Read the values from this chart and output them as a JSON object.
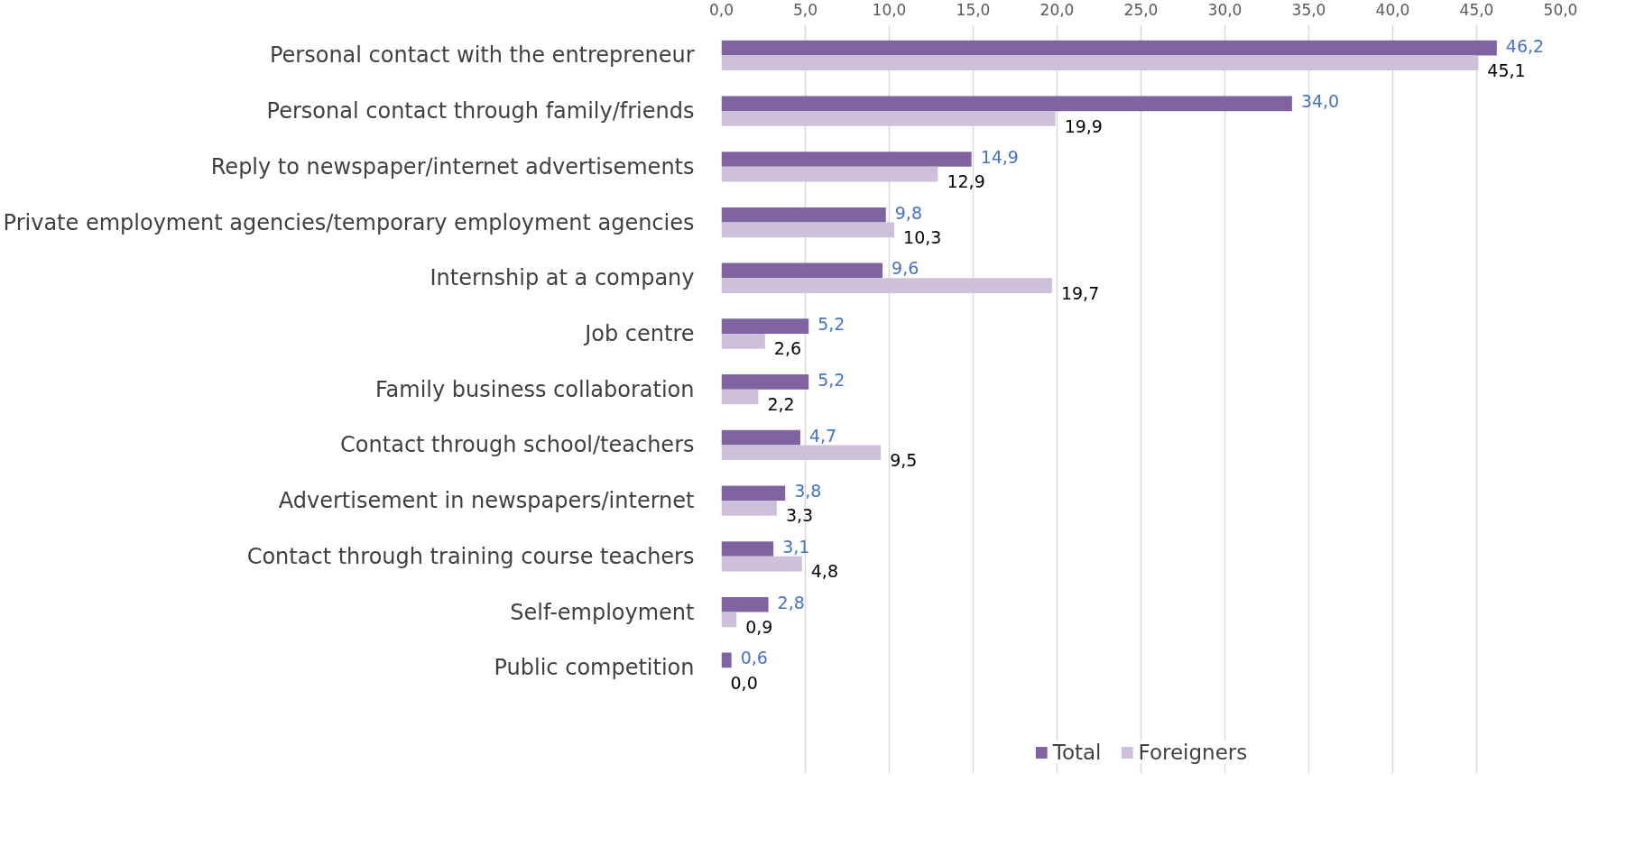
{
  "chart_data": {
    "type": "bar",
    "orientation": "horizontal",
    "categories": [
      "Personal contact with the entrepreneur",
      "Personal contact through family/friends",
      "Reply to newspaper/internet advertisements",
      "Private employment agencies/temporary employment agencies",
      "Internship at a company",
      "Job centre",
      "Family business collaboration",
      "Contact through school/teachers",
      "Advertisement in newspapers/internet",
      "Contact through training course teachers",
      "Self-employment",
      "Public competition"
    ],
    "series": [
      {
        "name": "Total",
        "color": "#8064a2",
        "values": [
          46.2,
          34.0,
          14.9,
          9.8,
          9.6,
          5.2,
          5.2,
          4.7,
          3.8,
          3.1,
          2.8,
          0.6
        ],
        "value_labels": [
          "46,2",
          "34,0",
          "14,9",
          "9,8",
          "9,6",
          "5,2",
          "5,2",
          "4,7",
          "3,8",
          "3,1",
          "2,8",
          "0,6"
        ]
      },
      {
        "name": "Foreigners",
        "color": "#ccc0da",
        "values": [
          45.1,
          19.9,
          12.9,
          10.3,
          19.7,
          2.6,
          2.2,
          9.5,
          3.3,
          4.8,
          0.9,
          0.0
        ],
        "value_labels": [
          "45,1",
          "19,9",
          "12,9",
          "10,3",
          "19,7",
          "2,6",
          "2,2",
          "9,5",
          "3,3",
          "4,8",
          "0,9",
          "0,0"
        ]
      }
    ],
    "xlim": [
      0,
      50
    ],
    "xticks": [
      {
        "value": 0,
        "label": "0,0"
      },
      {
        "value": 5,
        "label": "5,0"
      },
      {
        "value": 10,
        "label": "10,0"
      },
      {
        "value": 15,
        "label": "15,0"
      },
      {
        "value": 20,
        "label": "20,0"
      },
      {
        "value": 25,
        "label": "25,0"
      },
      {
        "value": 30,
        "label": "30,0"
      },
      {
        "value": 35,
        "label": "35,0"
      },
      {
        "value": 40,
        "label": "40,0"
      },
      {
        "value": 45,
        "label": "45,0"
      },
      {
        "value": 50,
        "label": "50,0"
      }
    ],
    "grid": "x",
    "legend": "bottom"
  }
}
